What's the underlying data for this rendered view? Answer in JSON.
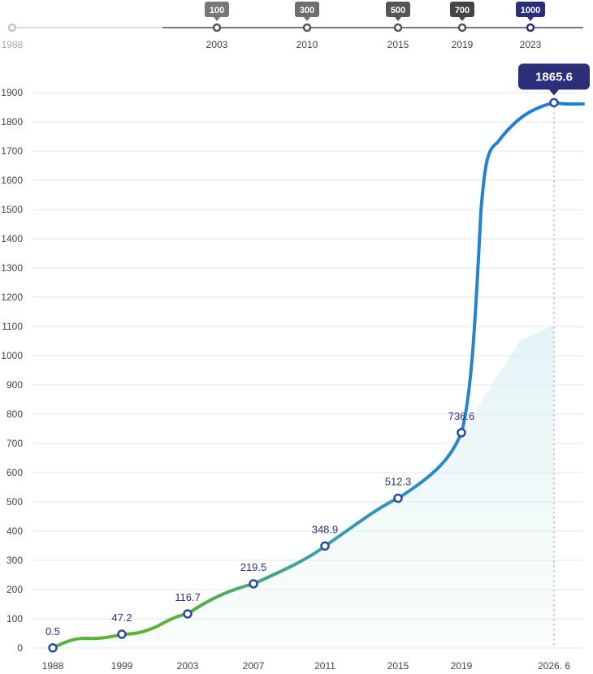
{
  "timeline": {
    "start_year": "1988",
    "milestones": [
      {
        "badge": "100",
        "year": "2003",
        "color": "#777777"
      },
      {
        "badge": "300",
        "year": "2010",
        "color": "#6e6e6e"
      },
      {
        "badge": "500",
        "year": "2015",
        "color": "#555555"
      },
      {
        "badge": "700",
        "year": "2019",
        "color": "#444444"
      },
      {
        "badge": "1000",
        "year": "2023",
        "color": "#2b2f7a"
      }
    ]
  },
  "chart_data": {
    "type": "line",
    "categories": [
      "1988",
      "1999",
      "2003",
      "2007",
      "2011",
      "2015",
      "2019",
      "2026. 6"
    ],
    "points": [
      {
        "x": "1988",
        "y": 0.5,
        "label": "0.5"
      },
      {
        "x": "1999",
        "y": 47.2,
        "label": "47.2"
      },
      {
        "x": "2003",
        "y": 116.7,
        "label": "116.7"
      },
      {
        "x": "2007",
        "y": 219.5,
        "label": "219.5"
      },
      {
        "x": "2011",
        "y": 348.9,
        "label": "348.9"
      },
      {
        "x": "2015",
        "y": 512.3,
        "label": "512.3"
      },
      {
        "x": "2019",
        "y": 736.6,
        "label": "736.6"
      },
      {
        "x": "2026. 6",
        "y": 1865.6,
        "label": "1865.6",
        "highlight": true
      }
    ],
    "yticks": [
      0,
      100,
      200,
      300,
      400,
      500,
      600,
      700,
      800,
      900,
      1000,
      1100,
      1200,
      1300,
      1400,
      1500,
      1600,
      1700,
      1800,
      1900
    ],
    "ylim": [
      0,
      1900
    ],
    "grid": true,
    "colors": {
      "start": "#5cb338",
      "mid": "#3aa0a6",
      "end": "#1f7fd6",
      "marker": "#2b4a9a",
      "callout": "#2b2f7a"
    }
  }
}
